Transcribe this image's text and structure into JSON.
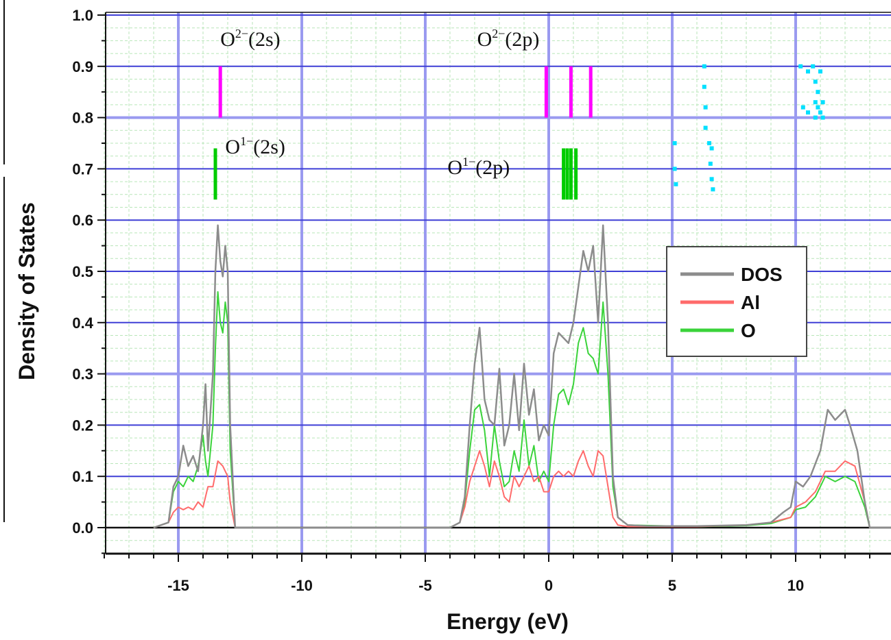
{
  "chart_data": {
    "type": "line",
    "title": "",
    "xlabel": "Energy (eV)",
    "ylabel": "Density of States",
    "xlim": [
      -18,
      14
    ],
    "ylim": [
      -0.05,
      1.0
    ],
    "xticks": [
      "-15",
      "-10",
      "-5",
      "0",
      "5",
      "10"
    ],
    "yticks": [
      "0.0",
      "0.1",
      "0.2",
      "0.3",
      "0.4",
      "0.5",
      "0.6",
      "0.7",
      "0.8",
      "0.9",
      "1.0"
    ],
    "grid": true,
    "legend_position": "right",
    "series": [
      {
        "name": "DOS",
        "color": "#8c8c8c",
        "x": [
          -16,
          -15.4,
          -15.2,
          -15.0,
          -14.8,
          -14.6,
          -14.4,
          -14.2,
          -14.0,
          -13.9,
          -13.8,
          -13.6,
          -13.5,
          -13.4,
          -13.3,
          -13.2,
          -13.1,
          -13.0,
          -12.9,
          -12.7,
          -12.5,
          -4.0,
          -3.6,
          -3.4,
          -3.2,
          -3.0,
          -2.8,
          -2.6,
          -2.4,
          -2.2,
          -2.0,
          -1.8,
          -1.6,
          -1.4,
          -1.2,
          -1.0,
          -0.8,
          -0.6,
          -0.4,
          -0.2,
          0.0,
          0.2,
          0.4,
          0.6,
          0.8,
          1.0,
          1.2,
          1.4,
          1.6,
          1.8,
          2.0,
          2.2,
          2.4,
          2.6,
          2.8,
          3.2,
          4.0,
          6.0,
          8.0,
          9.0,
          9.5,
          9.8,
          10.0,
          10.3,
          10.6,
          11.0,
          11.3,
          11.6,
          12.0,
          12.2,
          12.5,
          12.8,
          13.0,
          14.0
        ],
        "y": [
          0.0,
          0.01,
          0.08,
          0.1,
          0.16,
          0.12,
          0.14,
          0.11,
          0.2,
          0.28,
          0.15,
          0.3,
          0.5,
          0.59,
          0.52,
          0.49,
          0.55,
          0.5,
          0.2,
          0.0,
          0.0,
          0.0,
          0.01,
          0.06,
          0.2,
          0.32,
          0.39,
          0.25,
          0.21,
          0.2,
          0.31,
          0.16,
          0.2,
          0.3,
          0.19,
          0.32,
          0.22,
          0.27,
          0.17,
          0.2,
          0.18,
          0.34,
          0.38,
          0.37,
          0.36,
          0.4,
          0.47,
          0.54,
          0.5,
          0.55,
          0.4,
          0.59,
          0.4,
          0.1,
          0.02,
          0.005,
          0.003,
          0.003,
          0.005,
          0.01,
          0.03,
          0.04,
          0.09,
          0.08,
          0.1,
          0.15,
          0.23,
          0.21,
          0.23,
          0.2,
          0.15,
          0.05,
          0.0,
          0.0
        ]
      },
      {
        "name": "Al",
        "color": "#ff6b6b",
        "x": [
          -16,
          -15.4,
          -15.2,
          -15.0,
          -14.8,
          -14.6,
          -14.4,
          -14.2,
          -14.0,
          -13.8,
          -13.6,
          -13.4,
          -13.2,
          -13.0,
          -12.9,
          -12.7,
          -4.0,
          -3.6,
          -3.4,
          -3.2,
          -3.0,
          -2.8,
          -2.6,
          -2.4,
          -2.2,
          -2.0,
          -1.8,
          -1.6,
          -1.4,
          -1.2,
          -1.0,
          -0.8,
          -0.6,
          -0.4,
          -0.2,
          0.0,
          0.2,
          0.4,
          0.6,
          0.8,
          1.0,
          1.2,
          1.4,
          1.6,
          1.8,
          2.0,
          2.2,
          2.4,
          2.6,
          2.8,
          3.2,
          6.0,
          8.0,
          9.0,
          9.8,
          10.0,
          10.4,
          10.8,
          11.2,
          11.6,
          12.0,
          12.4,
          12.8,
          13.0,
          14.0
        ],
        "y": [
          0.0,
          0.01,
          0.03,
          0.04,
          0.035,
          0.04,
          0.035,
          0.05,
          0.04,
          0.08,
          0.08,
          0.13,
          0.12,
          0.1,
          0.05,
          0.0,
          0.0,
          0.01,
          0.04,
          0.09,
          0.12,
          0.15,
          0.12,
          0.08,
          0.13,
          0.1,
          0.06,
          0.05,
          0.1,
          0.08,
          0.1,
          0.12,
          0.09,
          0.1,
          0.07,
          0.07,
          0.1,
          0.11,
          0.1,
          0.11,
          0.1,
          0.13,
          0.15,
          0.12,
          0.1,
          0.15,
          0.14,
          0.08,
          0.02,
          0.005,
          0.002,
          0.002,
          0.005,
          0.01,
          0.02,
          0.04,
          0.05,
          0.07,
          0.11,
          0.11,
          0.13,
          0.12,
          0.05,
          0.0,
          0.0
        ]
      },
      {
        "name": "O",
        "color": "#3ad33a",
        "x": [
          -16,
          -15.4,
          -15.2,
          -15.0,
          -14.8,
          -14.6,
          -14.4,
          -14.2,
          -14.0,
          -13.9,
          -13.8,
          -13.6,
          -13.5,
          -13.4,
          -13.3,
          -13.2,
          -13.1,
          -13.0,
          -12.9,
          -12.7,
          -4.0,
          -3.6,
          -3.4,
          -3.2,
          -3.0,
          -2.8,
          -2.6,
          -2.4,
          -2.2,
          -2.0,
          -1.8,
          -1.6,
          -1.4,
          -1.2,
          -1.0,
          -0.8,
          -0.6,
          -0.4,
          -0.2,
          0.0,
          0.2,
          0.4,
          0.6,
          0.8,
          1.0,
          1.2,
          1.4,
          1.6,
          1.8,
          2.0,
          2.2,
          2.4,
          2.6,
          2.8,
          3.2,
          6.0,
          8.0,
          9.0,
          9.8,
          10.0,
          10.4,
          10.8,
          11.2,
          11.6,
          12.0,
          12.4,
          12.8,
          13.0,
          14.0
        ],
        "y": [
          0.0,
          0.01,
          0.07,
          0.09,
          0.08,
          0.1,
          0.09,
          0.12,
          0.18,
          0.13,
          0.1,
          0.2,
          0.35,
          0.46,
          0.4,
          0.38,
          0.44,
          0.4,
          0.15,
          0.0,
          0.0,
          0.01,
          0.05,
          0.15,
          0.23,
          0.24,
          0.19,
          0.1,
          0.2,
          0.13,
          0.08,
          0.09,
          0.15,
          0.11,
          0.21,
          0.12,
          0.16,
          0.09,
          0.11,
          0.09,
          0.2,
          0.26,
          0.27,
          0.24,
          0.28,
          0.36,
          0.39,
          0.34,
          0.33,
          0.3,
          0.44,
          0.3,
          0.08,
          0.02,
          0.005,
          0.002,
          0.004,
          0.008,
          0.02,
          0.035,
          0.04,
          0.06,
          0.1,
          0.09,
          0.1,
          0.09,
          0.04,
          0.0,
          0.0
        ]
      }
    ],
    "legend": [
      "DOS",
      "Al",
      "O"
    ],
    "annotations": [
      {
        "label_main": "O",
        "label_sup": "2−",
        "label_tail": "(2s)",
        "x": -13.3,
        "y": 0.94
      },
      {
        "label_main": "O",
        "label_sup": "2−",
        "label_tail": "(2p)",
        "x": -2.9,
        "y": 0.94
      },
      {
        "label_main": "O",
        "label_sup": "1−",
        "label_tail": "(2s)",
        "x": -13.1,
        "y": 0.73
      },
      {
        "label_main": "O",
        "label_sup": "1−",
        "label_tail": "(2p)",
        "x": -4.1,
        "y": 0.69
      }
    ],
    "level_markers": [
      {
        "group": "O2-",
        "color": "#ff00ff",
        "x": [
          -13.3,
          -0.1,
          0.9,
          1.7
        ],
        "y0": 0.8,
        "y1": 0.9
      },
      {
        "group": "O1-",
        "color": "#00cc00",
        "x": [
          -13.5,
          0.6,
          0.75,
          0.9,
          1.1
        ],
        "y0": 0.64,
        "y1": 0.74
      },
      {
        "group": "cyan",
        "color": "#00e0ff",
        "points": [
          [
            5.1,
            0.75
          ],
          [
            5.1,
            0.7
          ],
          [
            5.15,
            0.67
          ],
          [
            6.3,
            0.9
          ],
          [
            6.3,
            0.86
          ],
          [
            6.35,
            0.82
          ],
          [
            6.35,
            0.78
          ],
          [
            6.5,
            0.75
          ],
          [
            6.6,
            0.74
          ],
          [
            6.55,
            0.71
          ],
          [
            6.6,
            0.68
          ],
          [
            6.65,
            0.66
          ],
          [
            10.2,
            0.9
          ],
          [
            10.5,
            0.89
          ],
          [
            10.7,
            0.9
          ],
          [
            11.0,
            0.89
          ],
          [
            10.8,
            0.87
          ],
          [
            10.9,
            0.85
          ],
          [
            10.8,
            0.83
          ],
          [
            10.9,
            0.82
          ],
          [
            11.1,
            0.83
          ],
          [
            10.3,
            0.82
          ],
          [
            10.5,
            0.81
          ],
          [
            10.8,
            0.8
          ],
          [
            11.0,
            0.81
          ],
          [
            11.1,
            0.8
          ]
        ]
      }
    ]
  }
}
